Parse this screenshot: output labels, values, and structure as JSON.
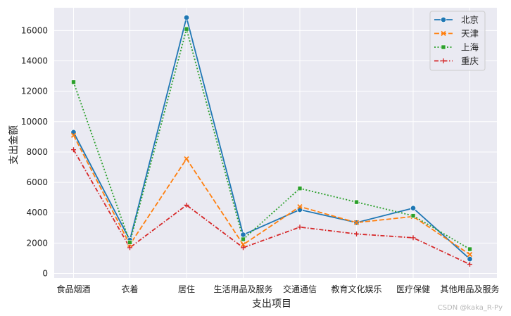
{
  "chart_data": {
    "type": "line",
    "categories": [
      "食品烟酒",
      "衣着",
      "居住",
      "生活用品及服务",
      "交通通信",
      "教育文化娱乐",
      "医疗保健",
      "其他用品及服务"
    ],
    "xlabel": "支出项目",
    "ylabel": "支出金额",
    "ylim": [
      -300,
      17500
    ],
    "yticks": [
      0,
      2000,
      4000,
      6000,
      8000,
      10000,
      12000,
      14000,
      16000
    ],
    "grid": true,
    "legend_position": "top-right",
    "series": [
      {
        "name": "北京",
        "color": "#1f77b4",
        "marker": "circle",
        "dash": "solid",
        "values": [
          9300,
          2200,
          16850,
          2550,
          4200,
          3350,
          4300,
          950
        ]
      },
      {
        "name": "天津",
        "color": "#ff7f0e",
        "marker": "x",
        "dash": "dashed",
        "values": [
          9100,
          1900,
          7550,
          1900,
          4400,
          3350,
          3750,
          1250
        ]
      },
      {
        "name": "上海",
        "color": "#2ca02c",
        "marker": "square",
        "dash": "dotted",
        "values": [
          12600,
          2050,
          16100,
          2250,
          5600,
          4700,
          3800,
          1600
        ]
      },
      {
        "name": "重庆",
        "color": "#d62728",
        "marker": "plus",
        "dash": "dashdot",
        "values": [
          8150,
          1700,
          4500,
          1700,
          3050,
          2600,
          2350,
          600
        ]
      }
    ]
  },
  "watermark": "CSDN @kaka_R-Py"
}
